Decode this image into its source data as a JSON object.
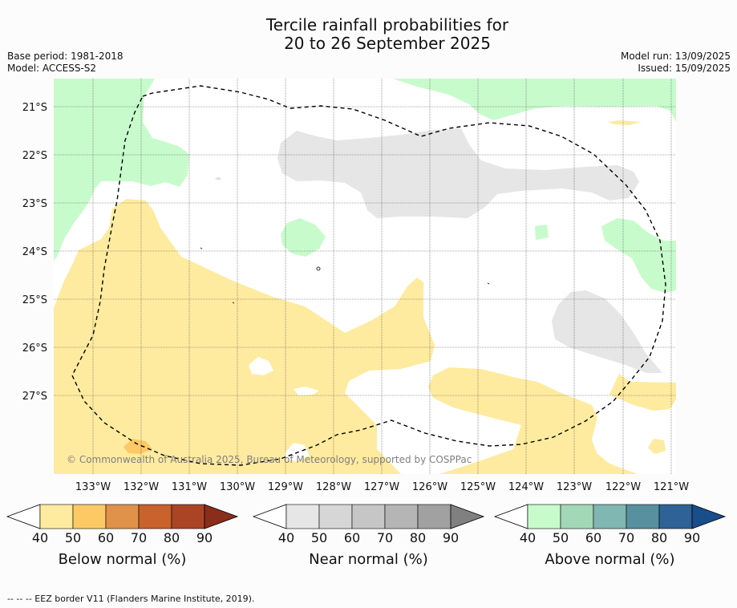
{
  "title": {
    "line1": "Tercile rainfall probabilities for",
    "line2": "20 to 26 September 2025"
  },
  "meta_left": {
    "base_period": "Base period: 1981-2018",
    "model": "Model: ACCESS-S2"
  },
  "meta_right": {
    "model_run": "Model run: 13/09/2025",
    "issued": "Issued: 15/09/2025"
  },
  "map": {
    "lat_labels": [
      "21°S",
      "22°S",
      "23°S",
      "24°S",
      "25°S",
      "26°S",
      "27°S"
    ],
    "lon_labels": [
      "133°W",
      "132°W",
      "131°W",
      "130°W",
      "129°W",
      "128°W",
      "127°W",
      "126°W",
      "125°W",
      "124°W",
      "123°W",
      "122°W",
      "121°W"
    ],
    "copyright": "© Commonwealth of Australia 2025, Bureau of Meteorology, supported by COSPPac",
    "grid": true
  },
  "legends": [
    {
      "label": "Below normal (%)",
      "ticks": [
        "40",
        "50",
        "60",
        "70",
        "80",
        "90"
      ],
      "colors": [
        "#fff",
        "#feeb9f",
        "#fdc964",
        "#e0914a",
        "#c9622c",
        "#ab4424",
        "#8b2d1b"
      ]
    },
    {
      "label": "Near normal (%)",
      "ticks": [
        "40",
        "50",
        "60",
        "70",
        "80",
        "90"
      ],
      "colors": [
        "#fff",
        "#e6e6e6",
        "#d6d6d6",
        "#c6c6c6",
        "#b5b5b5",
        "#a1a1a1",
        "#808080"
      ]
    },
    {
      "label": "Above normal (%)",
      "ticks": [
        "40",
        "50",
        "60",
        "70",
        "80",
        "90"
      ],
      "colors": [
        "#fff",
        "#c8fbcc",
        "#a3d8b7",
        "#81b7b2",
        "#5890a0",
        "#2f6296",
        "#1a4e8a"
      ]
    }
  ],
  "colors": {
    "below_50": "#feeb9f",
    "below_60": "#fdc964",
    "near_50": "#e6e6e6",
    "above_50": "#c8fbcc"
  },
  "footer": "--  --  -- EEZ border V11 (Flanders Marine Institute, 2019)."
}
